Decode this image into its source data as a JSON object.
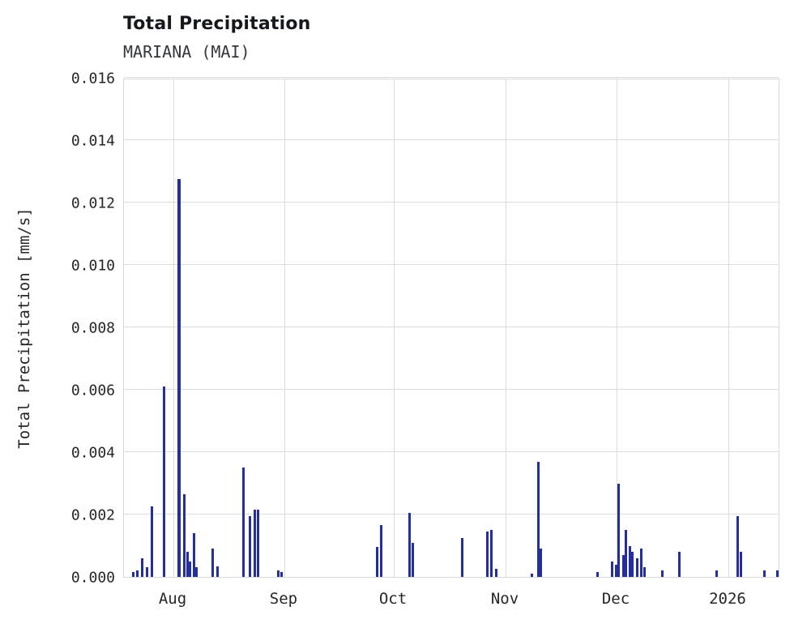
{
  "chart_data": {
    "type": "bar",
    "title": "Total Precipitation",
    "subtitle": "MARIANA (MAI)",
    "xlabel": "",
    "ylabel": "Total Precipitation [mm/s]",
    "ylim": [
      0,
      0.016
    ],
    "grid": true,
    "legend_position": "none",
    "bar_color": "#242e9c",
    "background_color": "#ffffff",
    "gridline_color": "#dcdcdc",
    "yticks": [
      {
        "value": 0.0,
        "label": "0.000"
      },
      {
        "value": 0.002,
        "label": "0.002"
      },
      {
        "value": 0.004,
        "label": "0.004"
      },
      {
        "value": 0.006,
        "label": "0.006"
      },
      {
        "value": 0.008,
        "label": "0.008"
      },
      {
        "value": 0.01,
        "label": "0.010"
      },
      {
        "value": 0.012,
        "label": "0.012"
      },
      {
        "value": 0.014,
        "label": "0.014"
      },
      {
        "value": 0.016,
        "label": "0.016"
      }
    ],
    "xticks": [
      {
        "pos": 0.0753,
        "label": "Aug"
      },
      {
        "pos": 0.2444,
        "label": "Sep"
      },
      {
        "pos": 0.4111,
        "label": "Oct"
      },
      {
        "pos": 0.5815,
        "label": "Nov"
      },
      {
        "pos": 0.7506,
        "label": "Dec"
      },
      {
        "pos": 0.921,
        "label": "2026"
      }
    ],
    "points": [
      {
        "x": 0.0136,
        "v": 0.00015
      },
      {
        "x": 0.0198,
        "v": 0.0002
      },
      {
        "x": 0.0272,
        "v": 0.0006
      },
      {
        "x": 0.0346,
        "v": 0.0003
      },
      {
        "x": 0.042,
        "v": 0.00225
      },
      {
        "x": 0.0605,
        "v": 0.0061
      },
      {
        "x": 0.084,
        "v": 0.01275,
        "w": 4
      },
      {
        "x": 0.0914,
        "v": 0.00265
      },
      {
        "x": 0.0963,
        "v": 0.0008
      },
      {
        "x": 0.1012,
        "v": 0.0005
      },
      {
        "x": 0.1062,
        "v": 0.0014
      },
      {
        "x": 0.1111,
        "v": 0.0003
      },
      {
        "x": 0.1358,
        "v": 0.0009
      },
      {
        "x": 0.1432,
        "v": 0.00035
      },
      {
        "x": 0.1827,
        "v": 0.0035
      },
      {
        "x": 0.1914,
        "v": 0.00195
      },
      {
        "x": 0.1988,
        "v": 0.00215
      },
      {
        "x": 0.2049,
        "v": 0.00215
      },
      {
        "x": 0.2358,
        "v": 0.0002
      },
      {
        "x": 0.2407,
        "v": 0.00015
      },
      {
        "x": 0.3864,
        "v": 0.00095
      },
      {
        "x": 0.3914,
        "v": 0.00165
      },
      {
        "x": 0.4358,
        "v": 0.00205
      },
      {
        "x": 0.4407,
        "v": 0.0011
      },
      {
        "x": 0.516,
        "v": 0.00125
      },
      {
        "x": 0.5543,
        "v": 0.00145
      },
      {
        "x": 0.5593,
        "v": 0.0015
      },
      {
        "x": 0.5667,
        "v": 0.00025
      },
      {
        "x": 0.621,
        "v": 0.0001
      },
      {
        "x": 0.6309,
        "v": 0.0037
      },
      {
        "x": 0.6346,
        "v": 0.0009
      },
      {
        "x": 0.7222,
        "v": 0.00015
      },
      {
        "x": 0.7444,
        "v": 0.0005
      },
      {
        "x": 0.7494,
        "v": 0.0004
      },
      {
        "x": 0.7543,
        "v": 0.003
      },
      {
        "x": 0.7605,
        "v": 0.0007
      },
      {
        "x": 0.7654,
        "v": 0.0015
      },
      {
        "x": 0.7704,
        "v": 0.001
      },
      {
        "x": 0.7753,
        "v": 0.0008
      },
      {
        "x": 0.7815,
        "v": 0.0006
      },
      {
        "x": 0.7877,
        "v": 0.0009
      },
      {
        "x": 0.7926,
        "v": 0.0003
      },
      {
        "x": 0.8198,
        "v": 0.0002
      },
      {
        "x": 0.8469,
        "v": 0.0008
      },
      {
        "x": 0.9037,
        "v": 0.0002
      },
      {
        "x": 0.9358,
        "v": 0.00195
      },
      {
        "x": 0.9407,
        "v": 0.0008
      },
      {
        "x": 0.9765,
        "v": 0.0002
      },
      {
        "x": 0.9951,
        "v": 0.0002
      }
    ]
  }
}
